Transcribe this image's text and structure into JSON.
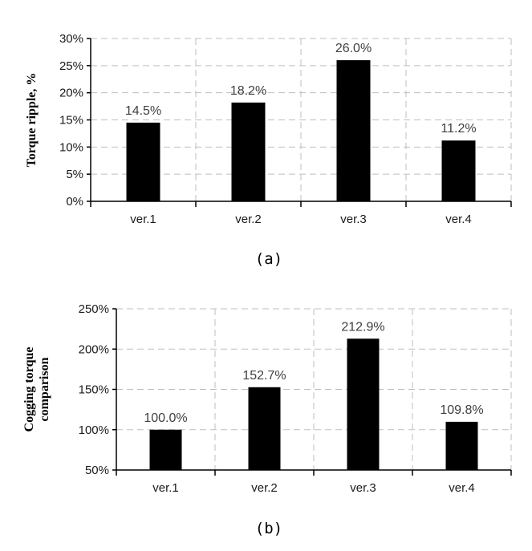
{
  "chart_data": [
    {
      "type": "bar",
      "categories": [
        "ver.1",
        "ver.2",
        "ver.3",
        "ver.4"
      ],
      "values": [
        14.5,
        18.2,
        26.0,
        11.2
      ],
      "data_labels": [
        "14.5%",
        "18.2%",
        "26.0%",
        "11.2%"
      ],
      "ylabel": "Torque ripple, %",
      "ylim": [
        0,
        30
      ],
      "yticks": [
        0,
        5,
        10,
        15,
        20,
        25,
        30
      ],
      "ytick_labels": [
        "0%",
        "5%",
        "10%",
        "15%",
        "20%",
        "25%",
        "30%"
      ],
      "caption": "(a)",
      "grid": true,
      "bar_color": "#000000"
    },
    {
      "type": "bar",
      "categories": [
        "ver.1",
        "ver.2",
        "ver.3",
        "ver.4"
      ],
      "values": [
        100.0,
        152.7,
        212.9,
        109.8
      ],
      "data_labels": [
        "100.0%",
        "152.7%",
        "212.9%",
        "109.8%"
      ],
      "ylabel": [
        "Cogging torque",
        "comparison"
      ],
      "ylim": [
        50,
        250
      ],
      "yticks": [
        50,
        100,
        150,
        200,
        250
      ],
      "ytick_labels": [
        "50%",
        "100%",
        "150%",
        "200%",
        "250%"
      ],
      "caption": "(b)",
      "grid": true,
      "bar_color": "#000000"
    }
  ]
}
